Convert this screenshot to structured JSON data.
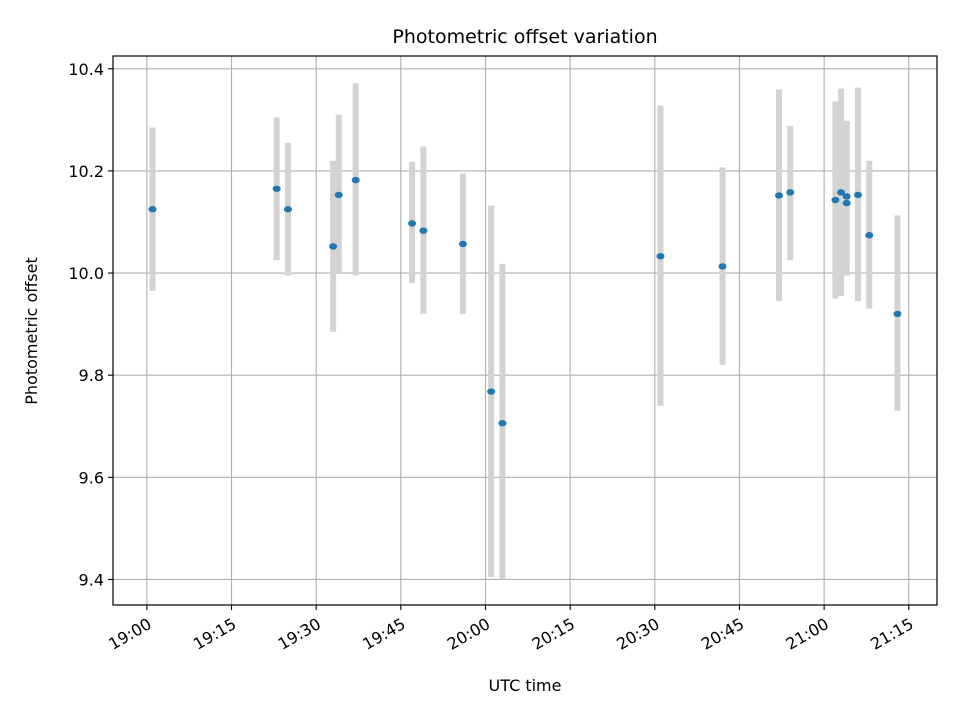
{
  "chart_data": {
    "type": "scatter",
    "title": "Photometric offset variation",
    "xlabel": "UTC time",
    "ylabel": "Photometric offset",
    "grid": true,
    "xlim": [
      "18:54",
      "21:20"
    ],
    "ylim": [
      9.35,
      10.425
    ],
    "xticks": [
      "19:00",
      "19:15",
      "19:30",
      "19:45",
      "20:00",
      "20:15",
      "20:30",
      "20:45",
      "21:00",
      "21:15"
    ],
    "yticks": [
      9.4,
      9.6,
      9.8,
      10.0,
      10.2,
      10.4
    ],
    "ytick_labels": [
      "9.4",
      "9.6",
      "9.8",
      "10.0",
      "10.2",
      "10.4"
    ],
    "colors": {
      "points": "#1f77b4",
      "errorbars": "#d3d3d3",
      "grid": "#b0b0b0"
    },
    "series": [
      {
        "points": [
          {
            "x": "19:01",
            "y": 10.125,
            "ylo": 9.965,
            "yhi": 10.285
          },
          {
            "x": "19:23",
            "y": 10.165,
            "ylo": 10.025,
            "yhi": 10.305
          },
          {
            "x": "19:25",
            "y": 10.125,
            "ylo": 9.995,
            "yhi": 10.255
          },
          {
            "x": "19:33",
            "y": 10.052,
            "ylo": 9.885,
            "yhi": 10.22
          },
          {
            "x": "19:34",
            "y": 10.153,
            "ylo": 10.0,
            "yhi": 10.31
          },
          {
            "x": "19:37",
            "y": 10.182,
            "ylo": 9.995,
            "yhi": 10.372
          },
          {
            "x": "19:47",
            "y": 10.097,
            "ylo": 9.98,
            "yhi": 10.218
          },
          {
            "x": "19:49",
            "y": 10.083,
            "ylo": 9.92,
            "yhi": 10.248
          },
          {
            "x": "19:56",
            "y": 10.057,
            "ylo": 9.92,
            "yhi": 10.195
          },
          {
            "x": "20:01",
            "y": 9.768,
            "ylo": 9.405,
            "yhi": 10.132
          },
          {
            "x": "20:03",
            "y": 9.706,
            "ylo": 9.4,
            "yhi": 10.018
          },
          {
            "x": "20:31",
            "y": 10.033,
            "ylo": 9.74,
            "yhi": 10.328
          },
          {
            "x": "20:42",
            "y": 10.013,
            "ylo": 9.82,
            "yhi": 10.207
          },
          {
            "x": "20:52",
            "y": 10.152,
            "ylo": 9.945,
            "yhi": 10.36
          },
          {
            "x": "20:54",
            "y": 10.158,
            "ylo": 10.025,
            "yhi": 10.288
          },
          {
            "x": "21:02",
            "y": 10.143,
            "ylo": 9.95,
            "yhi": 10.336
          },
          {
            "x": "21:03",
            "y": 10.158,
            "ylo": 9.955,
            "yhi": 10.361
          },
          {
            "x": "21:04",
            "y": 10.137,
            "ylo": 9.995,
            "yhi": 10.298
          },
          {
            "x": "21:04",
            "y": 10.15,
            "ylo": 10.005,
            "yhi": 10.298
          },
          {
            "x": "21:06",
            "y": 10.153,
            "ylo": 9.945,
            "yhi": 10.363
          },
          {
            "x": "21:08",
            "y": 10.074,
            "ylo": 9.93,
            "yhi": 10.22
          },
          {
            "x": "21:13",
            "y": 9.92,
            "ylo": 9.73,
            "yhi": 10.113
          }
        ]
      }
    ]
  }
}
